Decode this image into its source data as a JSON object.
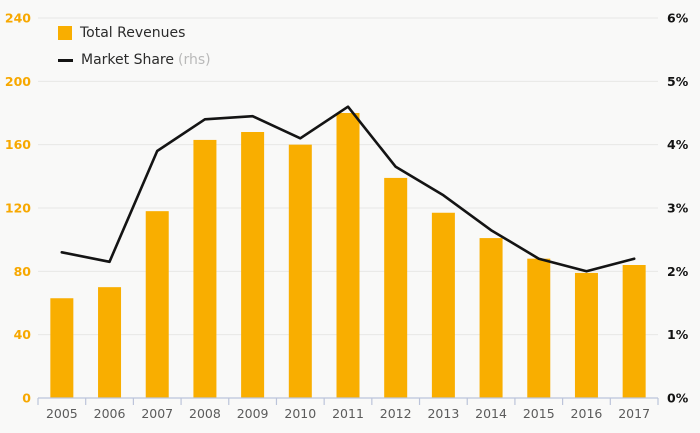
{
  "chart_data": {
    "type": "combo",
    "title": "",
    "categories": [
      "2005",
      "2006",
      "2007",
      "2008",
      "2009",
      "2010",
      "2011",
      "2012",
      "2013",
      "2014",
      "2015",
      "2016",
      "2017"
    ],
    "series": [
      {
        "name": "Total Revenues",
        "type": "bar",
        "axis": "left",
        "color": "#F9AE00",
        "values": [
          63,
          70,
          118,
          163,
          168,
          160,
          180,
          139,
          117,
          101,
          88,
          79,
          84
        ]
      },
      {
        "name": "Market Share",
        "name_suffix": "(rhs)",
        "type": "line",
        "axis": "right",
        "color": "#141414",
        "values": [
          2.3,
          2.15,
          3.9,
          4.4,
          4.45,
          4.1,
          4.6,
          3.65,
          3.2,
          2.65,
          2.2,
          2.0,
          2.2
        ]
      }
    ],
    "left_axis": {
      "min": 0,
      "max": 240,
      "step": 40,
      "tick_labels": [
        "0",
        "40",
        "80",
        "120",
        "160",
        "200",
        "240"
      ],
      "label_color": "#F7A800"
    },
    "right_axis": {
      "min": 0,
      "max": 6,
      "step": 1,
      "tick_labels": [
        "0%",
        "1%",
        "2%",
        "3%",
        "4%",
        "5%",
        "6%"
      ],
      "label_color": "#141414"
    },
    "x_axis": {
      "label_color": "#5b5b5b",
      "line_color": "#bcc4da"
    },
    "grid": true,
    "grid_color": "#e8e8e6",
    "legend_position": "top-left"
  },
  "legend": {
    "total_revenues_label": "Total Revenues",
    "market_share_label": "Market Share",
    "market_share_suffix": "(rhs)"
  }
}
